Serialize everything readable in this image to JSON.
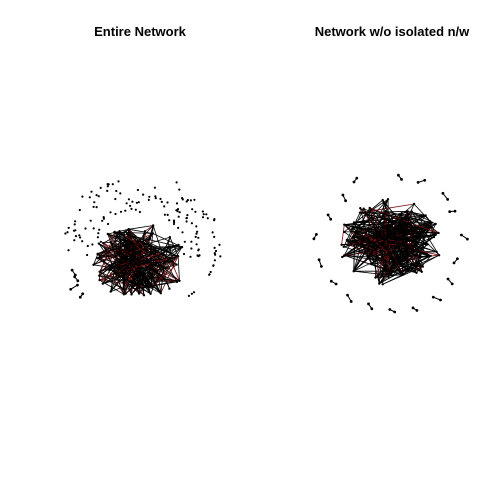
{
  "panels": [
    {
      "title": "Entire Network"
    },
    {
      "title": "Network w/o isolated n/w"
    }
  ],
  "colors": {
    "edge": "#000000",
    "node": "#000000",
    "core_tint": "#7a1010",
    "background": "#ffffff"
  }
}
